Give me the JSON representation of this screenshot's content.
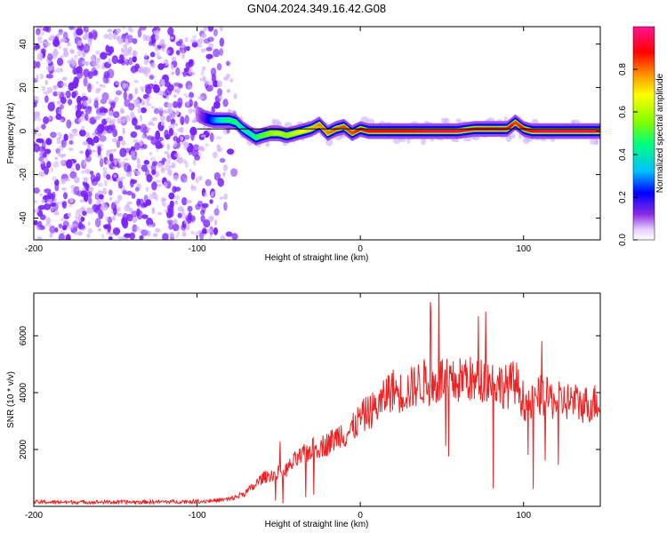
{
  "title": "GN04.2024.349.16.42.G08",
  "colors": {
    "snr_line": "#ee2222",
    "reference_line": "#000000",
    "noise_dots": "#7a22ff",
    "colormap": [
      "#ffffff",
      "#e6ccff",
      "#8a2be2",
      "#0000ff",
      "#00bfff",
      "#00ff7f",
      "#7fff00",
      "#ffff00",
      "#ff8c00",
      "#ff0000",
      "#ff1493"
    ]
  },
  "chart_data": [
    {
      "type": "heatmap",
      "xlabel": "Height of straight line (km)",
      "ylabel": "Frequency (Hz)",
      "xlim": [
        -200,
        147
      ],
      "ylim": [
        -50,
        48
      ],
      "x_ticks": [
        -200,
        -100,
        0,
        100
      ],
      "y_ticks": [
        -40,
        -20,
        0,
        20,
        40
      ],
      "grid": false,
      "noise_region": {
        "x_from": -200,
        "x_to": -74,
        "y_from": -50,
        "y_to": 48
      },
      "colorbar": {
        "label": "Normalized spectral amplitude",
        "range": [
          0,
          1
        ],
        "ticks": [
          0.0,
          0.2,
          0.4,
          0.6,
          0.8
        ]
      },
      "ridge": {
        "x": [
          -100,
          -95,
          -90,
          -85,
          -80,
          -76,
          -72,
          -68,
          -64,
          -60,
          -55,
          -50,
          -45,
          -40,
          -35,
          -30,
          -25,
          -20,
          -15,
          -10,
          -5,
          0,
          5,
          10,
          20,
          30,
          40,
          50,
          60,
          70,
          80,
          90,
          95,
          100,
          105,
          110,
          120,
          130,
          140,
          147
        ],
        "freq": [
          8,
          6,
          5,
          5,
          5,
          4,
          1,
          -1,
          -3,
          -2,
          -1,
          -1,
          -2,
          -1,
          0,
          1,
          3,
          -1,
          1,
          2,
          -1,
          1,
          0,
          0,
          0,
          0,
          0,
          0,
          0,
          1,
          1,
          1,
          4,
          1,
          0,
          0,
          0,
          0,
          0,
          0
        ],
        "amplitude": [
          0.15,
          0.25,
          0.35,
          0.45,
          0.5,
          0.5,
          0.45,
          0.45,
          0.5,
          0.55,
          0.6,
          0.65,
          0.6,
          0.65,
          0.7,
          0.75,
          0.8,
          0.8,
          0.85,
          0.85,
          0.85,
          0.9,
          0.92,
          0.92,
          0.92,
          0.92,
          0.95,
          0.95,
          0.95,
          0.95,
          0.95,
          0.95,
          0.85,
          0.9,
          0.92,
          0.95,
          0.95,
          0.95,
          0.95,
          0.95
        ]
      },
      "reference_line": {
        "freq": 1,
        "x_from": -100,
        "x_to": 147
      }
    },
    {
      "type": "line",
      "xlabel": "Height of straight line (km)",
      "ylabel": "SNR (10 * v/v)",
      "xlim": [
        -200,
        147
      ],
      "ylim": [
        0,
        7500
      ],
      "x_ticks": [
        -200,
        -100,
        0,
        100
      ],
      "y_ticks": [
        2000,
        4000,
        6000
      ],
      "grid": false,
      "series": [
        {
          "x": [
            -200,
            -180,
            -160,
            -140,
            -120,
            -100,
            -90,
            -80,
            -75,
            -70,
            -65,
            -62,
            -60,
            -55,
            -50,
            -45,
            -40,
            -35,
            -30,
            -25,
            -20,
            -15,
            -12,
            -10,
            -5,
            0,
            5,
            10,
            14,
            16,
            20,
            25,
            30,
            35,
            40,
            45,
            50,
            55,
            60,
            65,
            70,
            75,
            80,
            85,
            90,
            95,
            100,
            105,
            110,
            115,
            120,
            125,
            130,
            135,
            140,
            147
          ],
          "y": [
            150,
            150,
            150,
            150,
            160,
            170,
            200,
            250,
            350,
            500,
            700,
            900,
            1000,
            1100,
            1200,
            1300,
            1600,
            1800,
            2000,
            2100,
            2200,
            2400,
            2600,
            2500,
            2700,
            3100,
            3300,
            3500,
            3700,
            4000,
            4100,
            4000,
            4100,
            4300,
            4400,
            4200,
            4500,
            4300,
            4400,
            4600,
            4300,
            4500,
            4400,
            4300,
            4200,
            4400,
            3700,
            3600,
            3900,
            3800,
            3700,
            3700,
            3700,
            3600,
            3600,
            3700
          ]
        }
      ]
    }
  ]
}
